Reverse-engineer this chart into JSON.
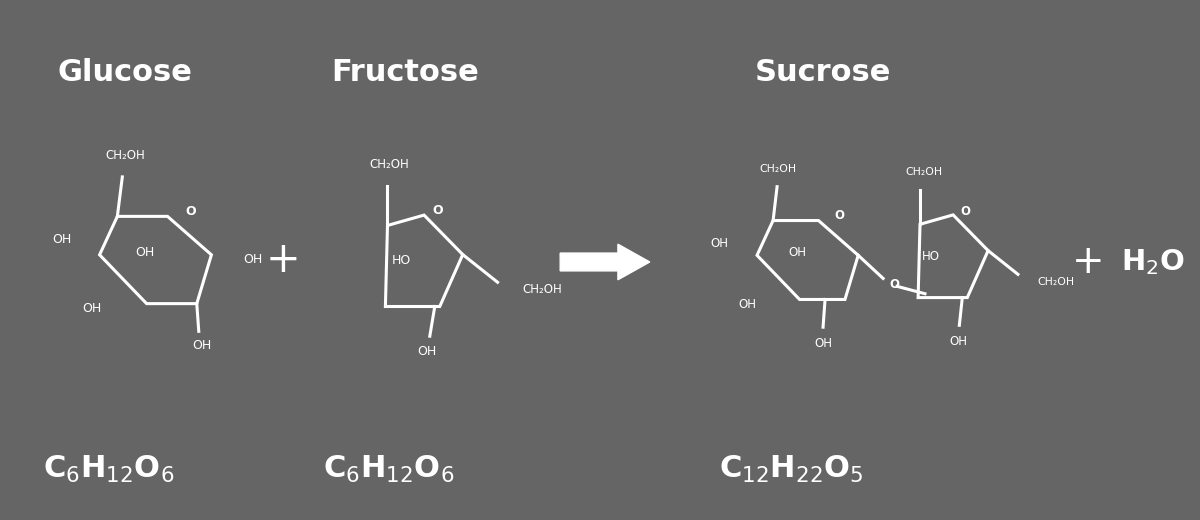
{
  "bg_color": "#656565",
  "line_color": "#ffffff",
  "text_color": "#ffffff",
  "title_glucose": "Glucose",
  "title_fructose": "Fructose",
  "title_sucrose": "Sucrose",
  "figsize": [
    12.0,
    5.2
  ],
  "dpi": 100
}
